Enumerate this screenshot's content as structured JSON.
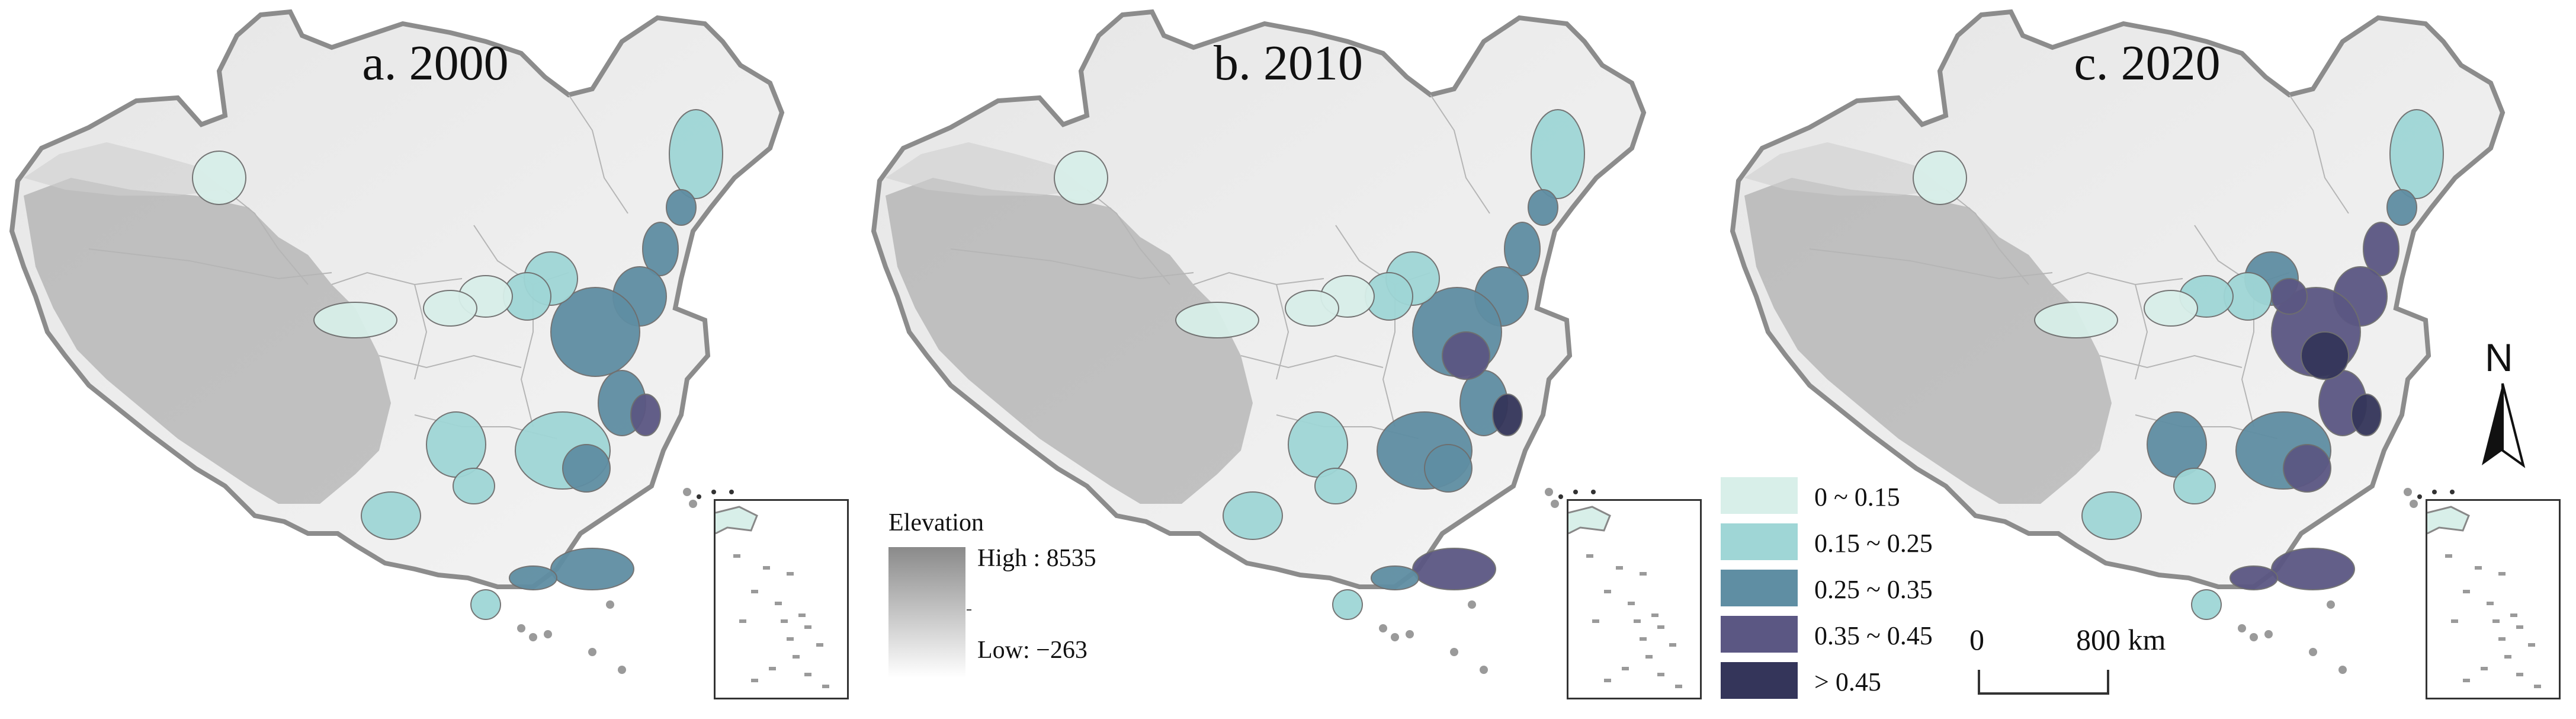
{
  "panels": [
    {
      "id": "a",
      "title": "a. 2000"
    },
    {
      "id": "b",
      "title": "b. 2010"
    },
    {
      "id": "c",
      "title": "c. 2020"
    }
  ],
  "elevation_legend": {
    "title": "Elevation",
    "high": "High : 8535",
    "low": "Low: −263",
    "colors": {
      "high": "#8a8a8a",
      "low": "#ffffff"
    }
  },
  "class_legend": [
    {
      "label": "0 ~ 0.15",
      "color": "#d8efe9"
    },
    {
      "label": "0.15 ~ 0.25",
      "color": "#9fd6d6"
    },
    {
      "label": "0.25 ~ 0.35",
      "color": "#5f8ea3"
    },
    {
      "label": "0.35 ~ 0.45",
      "color": "#5b5783"
    },
    {
      "label": "> 0.45",
      "color": "#34355a"
    }
  ],
  "scale_bar": {
    "left": "0",
    "right": "800 km"
  },
  "north_arrow": {
    "label": "N"
  },
  "colors": {
    "terrain_light": "#e6e6e6",
    "terrain_dark": "#9a9a9a",
    "border": "#8c8c8c",
    "province_line": "#b5b5b5"
  }
}
